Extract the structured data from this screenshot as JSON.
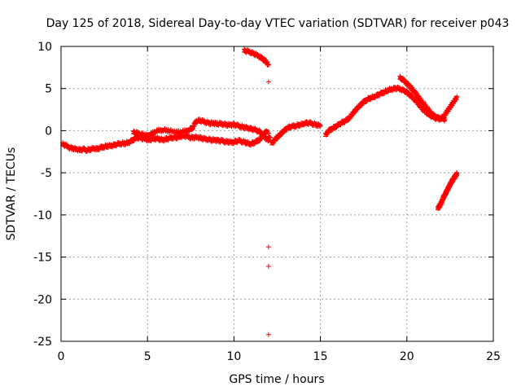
{
  "chart_data": {
    "type": "scatter",
    "title": "Day 125 of 2018, Sidereal Day-to-day VTEC variation (SDTVAR) for receiver p043",
    "xlabel": "GPS time / hours",
    "ylabel": "SDTVAR / TECUs",
    "xlim": [
      0,
      25
    ],
    "ylim": [
      -25,
      10
    ],
    "x_ticks": [
      0,
      5,
      10,
      15,
      20,
      25
    ],
    "x_tick_labels": [
      "0",
      "5",
      "10",
      "15",
      "20",
      "25"
    ],
    "y_ticks": [
      10,
      5,
      0,
      -5,
      -10,
      -15,
      -20,
      -25
    ],
    "y_tick_labels": [
      "10",
      "5",
      "0",
      "-5",
      "-10",
      "-15",
      "-20",
      "-25"
    ],
    "grid": true,
    "marker": "+",
    "color": "#ff0000",
    "series": [
      {
        "name": "main_trace",
        "points": [
          [
            0.1,
            -1.6
          ],
          [
            0.3,
            -1.8
          ],
          [
            0.5,
            -2.0
          ],
          [
            0.7,
            -2.1
          ],
          [
            0.9,
            -2.2
          ],
          [
            1.1,
            -2.3
          ],
          [
            1.3,
            -2.2
          ],
          [
            1.5,
            -2.3
          ],
          [
            1.7,
            -2.2
          ],
          [
            1.9,
            -2.1
          ],
          [
            2.1,
            -2.2
          ],
          [
            2.3,
            -2.0
          ],
          [
            2.5,
            -1.9
          ],
          [
            2.7,
            -1.8
          ],
          [
            2.9,
            -1.8
          ],
          [
            3.1,
            -1.7
          ],
          [
            3.3,
            -1.6
          ],
          [
            3.5,
            -1.5
          ],
          [
            3.7,
            -1.5
          ],
          [
            3.9,
            -1.4
          ],
          [
            4.1,
            -1.2
          ],
          [
            4.3,
            -0.9
          ],
          [
            4.5,
            -0.8
          ],
          [
            4.7,
            -0.9
          ],
          [
            4.9,
            -1.0
          ],
          [
            5.1,
            -1.1
          ],
          [
            5.3,
            -1.0
          ],
          [
            5.5,
            -0.9
          ],
          [
            5.7,
            -1.0
          ],
          [
            5.9,
            -1.1
          ],
          [
            6.1,
            -1.0
          ],
          [
            6.3,
            -0.9
          ],
          [
            6.5,
            -0.8
          ],
          [
            6.7,
            -0.8
          ],
          [
            6.9,
            -0.7
          ],
          [
            7.1,
            -0.6
          ],
          [
            7.3,
            -0.7
          ],
          [
            7.5,
            -0.8
          ],
          [
            7.7,
            -0.8
          ],
          [
            7.9,
            -0.8
          ],
          [
            8.1,
            -0.9
          ],
          [
            8.3,
            -1.0
          ],
          [
            8.5,
            -1.0
          ],
          [
            8.7,
            -1.1
          ],
          [
            8.9,
            -1.1
          ],
          [
            9.1,
            -1.2
          ],
          [
            9.3,
            -1.2
          ],
          [
            9.5,
            -1.3
          ],
          [
            9.7,
            -1.3
          ],
          [
            9.9,
            -1.4
          ],
          [
            10.1,
            -1.3
          ],
          [
            10.3,
            -1.2
          ],
          [
            10.5,
            -1.3
          ],
          [
            10.7,
            -1.4
          ],
          [
            10.9,
            -1.6
          ],
          [
            11.1,
            -1.5
          ],
          [
            11.3,
            -1.3
          ],
          [
            11.5,
            -1.0
          ],
          [
            11.7,
            -0.5
          ],
          [
            11.9,
            0.0
          ],
          [
            12.2,
            -1.5
          ],
          [
            12.4,
            -1.0
          ],
          [
            12.6,
            -0.6
          ],
          [
            12.8,
            -0.2
          ],
          [
            13.0,
            0.2
          ],
          [
            13.2,
            0.4
          ],
          [
            13.4,
            0.5
          ],
          [
            13.6,
            0.6
          ],
          [
            13.8,
            0.7
          ],
          [
            14.0,
            0.8
          ],
          [
            14.2,
            0.9
          ],
          [
            14.4,
            0.9
          ],
          [
            14.6,
            0.8
          ],
          [
            14.8,
            0.7
          ],
          [
            15.0,
            0.6
          ]
        ]
      },
      {
        "name": "upper_segment_6_to_12h",
        "points": [
          [
            4.2,
            -0.2
          ],
          [
            4.4,
            -0.3
          ],
          [
            4.6,
            -0.4
          ],
          [
            4.8,
            -0.5
          ],
          [
            5.0,
            -0.6
          ],
          [
            5.3,
            -0.3
          ],
          [
            5.6,
            0.0
          ],
          [
            5.9,
            0.1
          ],
          [
            6.2,
            0.0
          ],
          [
            6.5,
            -0.1
          ],
          [
            6.8,
            -0.2
          ],
          [
            7.1,
            -0.1
          ],
          [
            7.4,
            0.1
          ],
          [
            7.6,
            0.3
          ],
          [
            7.8,
            1.1
          ],
          [
            8.0,
            1.2
          ],
          [
            8.2,
            1.1
          ],
          [
            8.4,
            1.0
          ],
          [
            8.6,
            0.9
          ],
          [
            8.8,
            0.9
          ],
          [
            9.0,
            0.8
          ],
          [
            9.2,
            0.8
          ],
          [
            9.4,
            0.8
          ],
          [
            9.6,
            0.7
          ],
          [
            9.8,
            0.7
          ],
          [
            10.0,
            0.7
          ],
          [
            10.2,
            0.6
          ],
          [
            10.4,
            0.5
          ],
          [
            10.6,
            0.4
          ],
          [
            10.8,
            0.3
          ],
          [
            11.0,
            0.2
          ],
          [
            11.2,
            0.1
          ],
          [
            11.4,
            0.0
          ],
          [
            11.6,
            -0.3
          ],
          [
            11.8,
            -0.8
          ],
          [
            12.0,
            -1.2
          ]
        ]
      },
      {
        "name": "ridge_15_to_23h",
        "points": [
          [
            15.3,
            -0.5
          ],
          [
            15.5,
            0.0
          ],
          [
            15.7,
            0.3
          ],
          [
            15.9,
            0.5
          ],
          [
            16.1,
            0.8
          ],
          [
            16.3,
            1.0
          ],
          [
            16.5,
            1.2
          ],
          [
            16.7,
            1.6
          ],
          [
            16.9,
            2.1
          ],
          [
            17.1,
            2.6
          ],
          [
            17.3,
            3.0
          ],
          [
            17.5,
            3.4
          ],
          [
            17.7,
            3.7
          ],
          [
            17.9,
            3.9
          ],
          [
            18.1,
            4.0
          ],
          [
            18.3,
            4.2
          ],
          [
            18.5,
            4.4
          ],
          [
            18.7,
            4.6
          ],
          [
            18.9,
            4.8
          ],
          [
            19.1,
            4.9
          ],
          [
            19.3,
            5.0
          ],
          [
            19.5,
            5.0
          ],
          [
            19.7,
            4.9
          ],
          [
            19.9,
            4.7
          ],
          [
            20.1,
            4.4
          ],
          [
            20.3,
            4.0
          ],
          [
            20.5,
            3.6
          ],
          [
            20.7,
            3.1
          ],
          [
            20.9,
            2.6
          ],
          [
            21.1,
            2.2
          ],
          [
            21.3,
            1.9
          ],
          [
            21.5,
            1.6
          ],
          [
            21.7,
            1.5
          ],
          [
            21.9,
            1.4
          ],
          [
            22.1,
            1.6
          ],
          [
            22.3,
            2.2
          ],
          [
            22.5,
            2.8
          ],
          [
            22.7,
            3.4
          ],
          [
            22.9,
            4.0
          ]
        ]
      },
      {
        "name": "ridge_upper_band",
        "points": [
          [
            19.6,
            6.3
          ],
          [
            19.8,
            6.0
          ],
          [
            20.0,
            5.6
          ],
          [
            20.2,
            5.2
          ],
          [
            20.4,
            4.7
          ],
          [
            20.6,
            4.2
          ],
          [
            20.8,
            3.6
          ],
          [
            21.0,
            3.1
          ],
          [
            21.2,
            2.6
          ],
          [
            21.4,
            2.1
          ],
          [
            21.6,
            1.7
          ],
          [
            21.8,
            1.5
          ],
          [
            22.0,
            1.5
          ],
          [
            22.2,
            1.3
          ]
        ]
      },
      {
        "name": "high_arc_11h",
        "points": [
          [
            10.6,
            9.5
          ],
          [
            10.8,
            9.4
          ],
          [
            11.0,
            9.3
          ],
          [
            11.2,
            9.1
          ],
          [
            11.4,
            8.9
          ],
          [
            11.6,
            8.6
          ],
          [
            11.8,
            8.3
          ],
          [
            12.0,
            7.8
          ]
        ]
      },
      {
        "name": "late_negative_arc",
        "points": [
          [
            21.8,
            -9.2
          ],
          [
            21.9,
            -8.9
          ],
          [
            22.0,
            -8.5
          ],
          [
            22.1,
            -8.0
          ],
          [
            22.2,
            -7.6
          ],
          [
            22.3,
            -7.2
          ],
          [
            22.4,
            -6.8
          ],
          [
            22.5,
            -6.4
          ],
          [
            22.6,
            -6.0
          ],
          [
            22.7,
            -5.7
          ],
          [
            22.8,
            -5.4
          ],
          [
            22.9,
            -5.1
          ]
        ]
      },
      {
        "name": "outliers",
        "points": [
          [
            12.0,
            5.8
          ],
          [
            12.0,
            -13.8
          ],
          [
            12.0,
            -16.1
          ],
          [
            12.0,
            -24.2
          ],
          [
            4.2,
            -0.1
          ]
        ]
      }
    ]
  }
}
